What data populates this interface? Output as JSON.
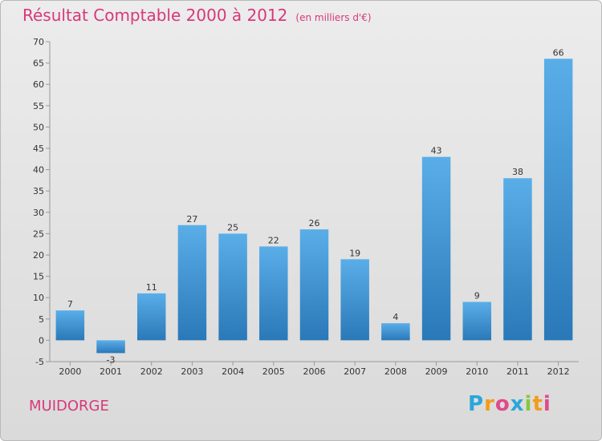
{
  "header": {
    "title": "Résultat Comptable 2000 à 2012",
    "unit_note": "(en milliers d'€)"
  },
  "footer": {
    "commune": "MUIDORGE"
  },
  "brand": {
    "logo_letters": [
      "P",
      "r",
      "o",
      "x",
      "i",
      "t",
      "i"
    ],
    "logo_colors": [
      "#2aa6da",
      "#f39c1b",
      "#e04a8a",
      "#2aa6da",
      "#8bc53f",
      "#f39c1b",
      "#e04a8a"
    ]
  },
  "colors": {
    "title": "#d8387a",
    "bar_top": "#5aaee8",
    "bar_bottom": "#2a78b8"
  },
  "chart_data": {
    "type": "bar",
    "title": "Résultat Comptable 2000 à 2012",
    "unit": "(en milliers d'€)",
    "categories": [
      "2000",
      "2001",
      "2002",
      "2003",
      "2004",
      "2005",
      "2006",
      "2007",
      "2008",
      "2009",
      "2010",
      "2011",
      "2012"
    ],
    "values": [
      7,
      -3,
      11,
      27,
      25,
      22,
      26,
      19,
      4,
      43,
      9,
      38,
      66
    ],
    "data_labels": [
      "7",
      "-3",
      "11",
      "27",
      "25",
      "22",
      "26",
      "19",
      "4",
      "43",
      "9",
      "38",
      "66"
    ],
    "ylim": [
      -5,
      70
    ],
    "yticks": [
      -5,
      0,
      5,
      10,
      15,
      20,
      25,
      30,
      35,
      40,
      45,
      50,
      55,
      60,
      65,
      70
    ],
    "grid": false
  }
}
